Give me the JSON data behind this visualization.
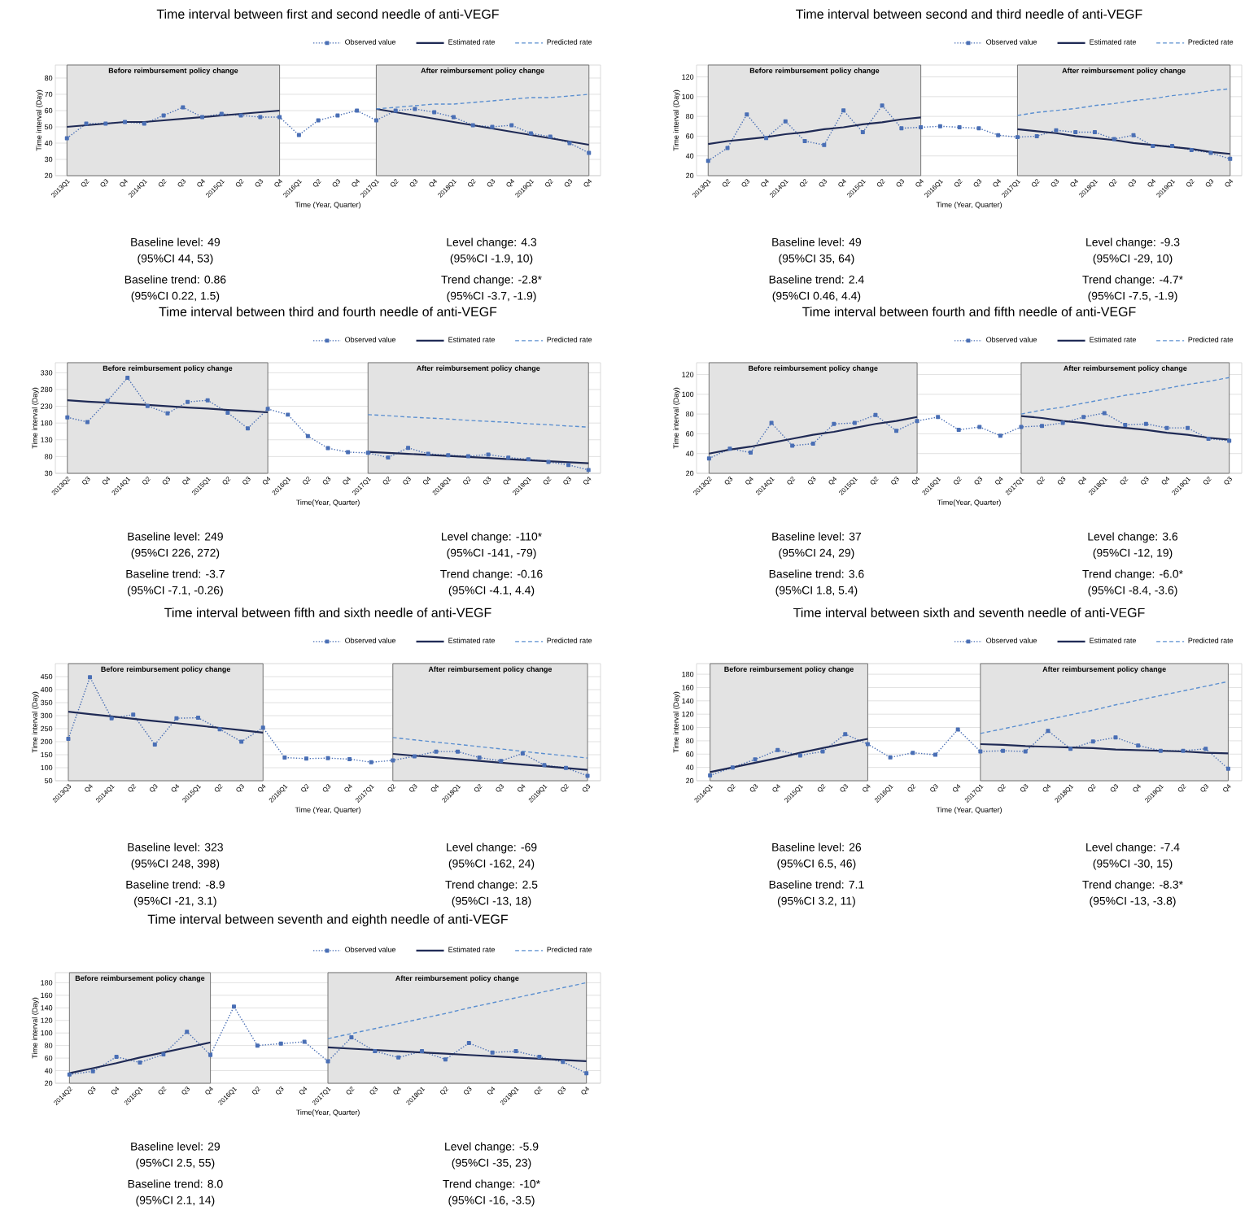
{
  "chart_data": [
    {
      "type": "line",
      "title": "Time interval between first and second needle of anti-VEGF",
      "xlabel": "Time (Year, Quarter)",
      "ylabel": "Time interval (Day)",
      "grid": "y",
      "legend": "top right",
      "ylim": [
        20,
        88
      ],
      "yticks": [
        20,
        30,
        40,
        50,
        60,
        70,
        80
      ],
      "categories": [
        "2013Q1",
        "Q2",
        "Q3",
        "Q4",
        "2014Q1",
        "Q2",
        "Q3",
        "Q4",
        "2015Q1",
        "Q2",
        "Q3",
        "Q4",
        "2016Q1",
        "Q2",
        "Q3",
        "Q4",
        "2017Q1",
        "Q2",
        "Q3",
        "Q4",
        "2018Q1",
        "Q2",
        "Q3",
        "Q4",
        "2019Q1",
        "Q2",
        "Q3",
        "Q4"
      ],
      "series": [
        {
          "name": "Observed value",
          "color": "#4a6fb5",
          "line_style": "dotted",
          "marker": "square",
          "values": [
            43,
            52,
            52,
            53,
            52,
            57,
            62,
            56,
            58,
            57,
            56,
            56,
            45,
            54,
            57,
            60,
            54,
            60,
            61,
            59,
            56,
            51,
            50,
            51,
            46,
            44,
            40,
            34
          ]
        },
        {
          "name": "Estimated rate",
          "color": "#1f2a55",
          "line_style": "solid",
          "marker": "none",
          "values": [
            50,
            51,
            52,
            53,
            53,
            54,
            55,
            56,
            57,
            58,
            59,
            60,
            null,
            null,
            null,
            null,
            null,
            null,
            null,
            null,
            null,
            null,
            null,
            null,
            null,
            null,
            null,
            null
          ]
        },
        {
          "color": "#1f2a55",
          "line_style": "solid",
          "marker": "none",
          "values": [
            null,
            null,
            null,
            null,
            null,
            null,
            null,
            null,
            null,
            null,
            null,
            null,
            null,
            null,
            null,
            null,
            61,
            59,
            57,
            55,
            53,
            51,
            49,
            47,
            45,
            43,
            41,
            39
          ]
        },
        {
          "name": "Predicted rate",
          "color": "#5b8fd0",
          "line_style": "dashed",
          "marker": "none",
          "values": [
            null,
            null,
            null,
            null,
            null,
            null,
            null,
            null,
            null,
            null,
            null,
            null,
            null,
            null,
            null,
            null,
            61,
            62,
            63,
            64,
            64,
            65,
            66,
            67,
            68,
            68,
            69,
            70
          ]
        }
      ],
      "annotations": [
        "Baseline level: 49",
        "(95%CI 44, 53)",
        "Baseline trend: 0.86",
        "(95%CI 0.22, 1.5)",
        "Level change: 4.3",
        "(95%CI -1.9, 10)",
        "Trend change: -2.8*",
        "(95%CI -3.7, -1.9)",
        "Before reimbursement policy change",
        "After reimbursement policy change"
      ]
    },
    {
      "type": "line",
      "title": "Time interval between second and third needle of anti-VEGF",
      "xlabel": "Time (Year, Quarter)",
      "ylabel": "Time interval (Day)",
      "grid": "y",
      "legend": "top right",
      "ylim": [
        20,
        132
      ],
      "yticks": [
        20,
        40,
        60,
        80,
        100,
        120
      ],
      "categories": [
        "2013Q1",
        "Q2",
        "Q3",
        "Q4",
        "2014Q1",
        "Q2",
        "Q3",
        "Q4",
        "2015Q1",
        "Q2",
        "Q3",
        "Q4",
        "2016Q1",
        "Q2",
        "Q3",
        "Q4",
        "2017Q1",
        "Q2",
        "Q3",
        "Q4",
        "2018Q1",
        "Q2",
        "Q3",
        "Q4",
        "2019Q1",
        "Q2",
        "Q3",
        "Q4"
      ],
      "series": [
        {
          "name": "Observed value",
          "color": "#4a6fb5",
          "line_style": "dotted",
          "marker": "square",
          "values": [
            35,
            48,
            82,
            58,
            75,
            55,
            51,
            86,
            64,
            91,
            68,
            69,
            70,
            69,
            68,
            61,
            59,
            60,
            66,
            64,
            64,
            57,
            61,
            50,
            50,
            46,
            43,
            37
          ]
        },
        {
          "name": "Estimated rate",
          "color": "#1f2a55",
          "line_style": "solid",
          "marker": "none",
          "values": [
            52,
            55,
            57,
            59,
            62,
            64,
            67,
            69,
            72,
            74,
            77,
            79,
            null,
            null,
            null,
            null,
            null,
            null,
            null,
            null,
            null,
            null,
            null,
            null,
            null,
            null,
            null,
            null
          ]
        },
        {
          "color": "#1f2a55",
          "line_style": "solid",
          "marker": "none",
          "values": [
            null,
            null,
            null,
            null,
            null,
            null,
            null,
            null,
            null,
            null,
            null,
            null,
            null,
            null,
            null,
            null,
            67,
            65,
            63,
            60,
            58,
            56,
            53,
            51,
            49,
            47,
            44,
            42
          ]
        },
        {
          "name": "Predicted rate",
          "color": "#5b8fd0",
          "line_style": "dashed",
          "marker": "none",
          "values": [
            null,
            null,
            null,
            null,
            null,
            null,
            null,
            null,
            null,
            null,
            null,
            null,
            null,
            null,
            null,
            null,
            81,
            84,
            86,
            88,
            91,
            93,
            96,
            98,
            101,
            103,
            106,
            108
          ]
        }
      ],
      "annotations": [
        "Baseline level: 49",
        "(95%CI 35, 64)",
        "Baseline trend: 2.4",
        "(95%CI 0.46, 4.4)",
        "Level change: -9.3",
        "(95%CI -29, 10)",
        "Trend change: -4.7*",
        "(95%CI -7.5, -1.9)",
        "Before reimbursement policy change",
        "After reimbursement policy change"
      ]
    },
    {
      "type": "line",
      "title": "Time interval between third and fourth needle of anti-VEGF",
      "xlabel": "Time(Year, Quarter)",
      "ylabel": "Time interval (Day)",
      "grid": "y",
      "legend": "top right",
      "ylim": [
        30,
        360
      ],
      "yticks": [
        30,
        80,
        130,
        180,
        230,
        280,
        330
      ],
      "categories": [
        "2013Q2",
        "Q3",
        "Q4",
        "2014Q1",
        "Q2",
        "Q3",
        "Q4",
        "2015Q1",
        "Q2",
        "Q3",
        "Q4",
        "2016Q1",
        "Q2",
        "Q3",
        "Q4",
        "2017Q1",
        "Q2",
        "Q3",
        "Q4",
        "2018Q1",
        "Q2",
        "Q3",
        "Q4",
        "2019Q1",
        "Q2",
        "Q3",
        "Q4"
      ],
      "series": [
        {
          "name": "Observed value",
          "color": "#4a6fb5",
          "line_style": "dotted",
          "marker": "square",
          "values": [
            197,
            183,
            246,
            315,
            231,
            209,
            243,
            248,
            211,
            164,
            222,
            205,
            141,
            105,
            93,
            91,
            77,
            106,
            88,
            84,
            81,
            86,
            77,
            72,
            64,
            55,
            40
          ]
        },
        {
          "name": "Estimated rate",
          "color": "#1f2a55",
          "line_style": "solid",
          "marker": "none",
          "values": [
            248,
            244,
            241,
            237,
            234,
            230,
            226,
            223,
            219,
            216,
            212,
            null,
            null,
            null,
            null,
            null,
            null,
            null,
            null,
            null,
            null,
            null,
            null,
            null,
            null,
            null,
            null
          ]
        },
        {
          "color": "#1f2a55",
          "line_style": "solid",
          "marker": "none",
          "values": [
            null,
            null,
            null,
            null,
            null,
            null,
            null,
            null,
            null,
            null,
            null,
            null,
            null,
            null,
            null,
            94,
            91,
            88,
            85,
            82,
            79,
            76,
            72,
            69,
            66,
            63,
            60
          ]
        },
        {
          "name": "Predicted rate",
          "color": "#5b8fd0",
          "line_style": "dashed",
          "marker": "none",
          "values": [
            null,
            null,
            null,
            null,
            null,
            null,
            null,
            null,
            null,
            null,
            null,
            null,
            null,
            null,
            null,
            205,
            202,
            198,
            195,
            192,
            188,
            185,
            182,
            178,
            175,
            171,
            168
          ]
        }
      ],
      "annotations": [
        "Baseline level: 249",
        "(95%CI 226, 272)",
        "Baseline trend: -3.7",
        "(95%CI -7.1, -0.26)",
        "Level change: -110*",
        "(95%CI -141, -79)",
        "Trend change: -0.16",
        "(95%CI -4.1, 4.4)",
        "Before reimbursement policy change",
        "After reimbursement policy change"
      ]
    },
    {
      "type": "line",
      "title": "Time interval between fourth and fifth needle of anti-VEGF",
      "xlabel": "Time(Year, Quarter)",
      "ylabel": "Time interval (Day)",
      "grid": "y",
      "legend": "top right",
      "ylim": [
        20,
        132
      ],
      "yticks": [
        20,
        40,
        60,
        80,
        100,
        120
      ],
      "categories": [
        "2013Q2",
        "Q3",
        "Q4",
        "2014Q1",
        "Q2",
        "Q3",
        "Q4",
        "2015Q1",
        "Q2",
        "Q3",
        "Q4",
        "2016Q1",
        "Q2",
        "Q3",
        "Q4",
        "2017Q1",
        "Q2",
        "Q3",
        "Q4",
        "2018Q1",
        "Q2",
        "Q3",
        "Q4",
        "2019Q1",
        "Q2",
        "Q3"
      ],
      "series": [
        {
          "name": "Observed value",
          "color": "#4a6fb5",
          "line_style": "dotted",
          "marker": "square",
          "values": [
            35,
            45,
            41,
            71,
            48,
            50,
            70,
            71,
            79,
            63,
            73,
            77,
            64,
            67,
            58,
            67,
            68,
            71,
            77,
            81,
            69,
            70,
            66,
            66,
            55,
            53
          ]
        },
        {
          "name": "Estimated rate",
          "color": "#1f2a55",
          "line_style": "solid",
          "marker": "none",
          "values": [
            40,
            44,
            47,
            51,
            55,
            59,
            62,
            66,
            70,
            73,
            77,
            null,
            null,
            null,
            null,
            null,
            null,
            null,
            null,
            null,
            null,
            null,
            null,
            null,
            null,
            null
          ]
        },
        {
          "color": "#1f2a55",
          "line_style": "solid",
          "marker": "none",
          "values": [
            null,
            null,
            null,
            null,
            null,
            null,
            null,
            null,
            null,
            null,
            null,
            null,
            null,
            null,
            null,
            78,
            76,
            73,
            71,
            68,
            66,
            64,
            61,
            59,
            56,
            54
          ]
        },
        {
          "name": "Predicted rate",
          "color": "#5b8fd0",
          "line_style": "dashed",
          "marker": "none",
          "values": [
            null,
            null,
            null,
            null,
            null,
            null,
            null,
            null,
            null,
            null,
            null,
            null,
            null,
            null,
            null,
            80,
            84,
            87,
            91,
            95,
            99,
            102,
            106,
            110,
            113,
            117
          ]
        }
      ],
      "annotations": [
        "Baseline level: 37",
        "(95%CI 24, 29)",
        "Baseline trend: 3.6",
        "(95%CI 1.8, 5.4)",
        "Level change: 3.6",
        "(95%CI -12, 19)",
        "Trend change: -6.0*",
        "(95%CI -8.4, -3.6)",
        "Before reimbursement policy change",
        "After reimbursement policy change"
      ]
    },
    {
      "type": "line",
      "title": "Time interval between fifth and sixth needle of anti-VEGF",
      "xlabel": "Time (Year, Quarter)",
      "ylabel": "Time interval (Day)",
      "grid": "y",
      "legend": "top right",
      "ylim": [
        50,
        500
      ],
      "yticks": [
        50,
        100,
        150,
        200,
        250,
        300,
        350,
        400,
        450
      ],
      "categories": [
        "2013Q3",
        "Q4",
        "2014Q1",
        "Q2",
        "Q3",
        "Q4",
        "2015Q1",
        "Q2",
        "Q3",
        "Q4",
        "2016Q1",
        "Q2",
        "Q3",
        "Q4",
        "2017Q1",
        "Q2",
        "Q3",
        "Q4",
        "2018Q1",
        "Q2",
        "Q3",
        "Q4",
        "2019Q1",
        "Q2",
        "Q3"
      ],
      "series": [
        {
          "name": "Observed value",
          "color": "#4a6fb5",
          "line_style": "dotted",
          "marker": "square",
          "values": [
            211,
            448,
            290,
            304,
            189,
            290,
            292,
            248,
            200,
            254,
            139,
            135,
            137,
            133,
            121,
            128,
            144,
            162,
            162,
            139,
            126,
            155,
            110,
            99,
            69
          ]
        },
        {
          "name": "Estimated rate",
          "color": "#1f2a55",
          "line_style": "solid",
          "marker": "none",
          "values": [
            315,
            306,
            297,
            288,
            279,
            271,
            262,
            253,
            244,
            235,
            null,
            null,
            null,
            null,
            null,
            null,
            null,
            null,
            null,
            null,
            null,
            null,
            null,
            null,
            null
          ]
        },
        {
          "color": "#1f2a55",
          "line_style": "solid",
          "marker": "none",
          "values": [
            null,
            null,
            null,
            null,
            null,
            null,
            null,
            null,
            null,
            null,
            null,
            null,
            null,
            null,
            null,
            153,
            146,
            140,
            133,
            126,
            119,
            112,
            106,
            99,
            92
          ]
        },
        {
          "name": "Predicted rate",
          "color": "#5b8fd0",
          "line_style": "dashed",
          "marker": "none",
          "values": [
            null,
            null,
            null,
            null,
            null,
            null,
            null,
            null,
            null,
            null,
            null,
            null,
            null,
            null,
            null,
            216,
            207,
            198,
            190,
            181,
            172,
            163,
            154,
            146,
            137
          ]
        }
      ],
      "annotations": [
        "Baseline level: 323",
        "(95%CI 248, 398)",
        "Baseline trend: -8.9",
        "(95%CI -21, 3.1)",
        "Level change: -69",
        "(95%CI -162, 24)",
        "Trend change: 2.5",
        "(95%CI -13, 18)",
        "Before reimbursement policy change",
        "After reimbursement policy change"
      ]
    },
    {
      "type": "line",
      "title": "Time interval between sixth and seventh needle of anti-VEGF",
      "xlabel": "Time (Year, Quarter)",
      "ylabel": "Time interval (Day)",
      "grid": "y",
      "legend": "top right",
      "ylim": [
        20,
        196
      ],
      "yticks": [
        20,
        40,
        60,
        80,
        100,
        120,
        140,
        160,
        180
      ],
      "categories": [
        "2014Q1",
        "Q2",
        "Q3",
        "Q4",
        "2015Q1",
        "Q2",
        "Q3",
        "Q4",
        "2016Q1",
        "Q2",
        "Q3",
        "Q4",
        "2017Q1",
        "Q2",
        "Q3",
        "Q4",
        "2018Q1",
        "Q2",
        "Q3",
        "Q4",
        "2019Q1",
        "Q2",
        "Q3",
        "Q4"
      ],
      "series": [
        {
          "name": "Observed value",
          "color": "#4a6fb5",
          "line_style": "dotted",
          "marker": "square",
          "values": [
            28,
            40,
            52,
            66,
            58,
            64,
            90,
            75,
            55,
            62,
            59,
            97,
            64,
            65,
            64,
            95,
            68,
            79,
            85,
            73,
            65,
            65,
            68,
            38
          ]
        },
        {
          "name": "Estimated rate",
          "color": "#1f2a55",
          "line_style": "solid",
          "marker": "none",
          "values": [
            33,
            40,
            47,
            54,
            62,
            69,
            76,
            83,
            null,
            null,
            null,
            null,
            null,
            null,
            null,
            null,
            null,
            null,
            null,
            null,
            null,
            null,
            null,
            null
          ]
        },
        {
          "color": "#1f2a55",
          "line_style": "solid",
          "marker": "none",
          "values": [
            null,
            null,
            null,
            null,
            null,
            null,
            null,
            null,
            null,
            null,
            null,
            null,
            75,
            74,
            72,
            71,
            70,
            69,
            67,
            66,
            65,
            64,
            62,
            61
          ]
        },
        {
          "name": "Predicted rate",
          "color": "#5b8fd0",
          "line_style": "dashed",
          "marker": "none",
          "values": [
            null,
            null,
            null,
            null,
            null,
            null,
            null,
            null,
            null,
            null,
            null,
            null,
            91,
            98,
            105,
            112,
            119,
            126,
            134,
            141,
            148,
            155,
            162,
            169
          ]
        }
      ],
      "annotations": [
        "Baseline level: 26",
        "(95%CI 6.5, 46)",
        "Baseline trend: 7.1",
        "(95%CI 3.2, 11)",
        "Level change: -7.4",
        "(95%CI -30, 15)",
        "Trend change: -8.3*",
        "(95%CI -13, -3.8)",
        "Before reimbursement policy change",
        "After reimbursement policy change"
      ]
    },
    {
      "type": "line",
      "title": "Time interval between seventh and eighth needle of anti-VEGF",
      "xlabel": "Time(Year, Quarter)",
      "ylabel": "Time interval (Day)",
      "grid": "y",
      "legend": "top right",
      "ylim": [
        20,
        196
      ],
      "yticks": [
        20,
        40,
        60,
        80,
        100,
        120,
        140,
        160,
        180
      ],
      "categories": [
        "2014Q2",
        "Q3",
        "Q4",
        "2015Q1",
        "Q2",
        "Q3",
        "Q4",
        "2016Q1",
        "Q2",
        "Q3",
        "Q4",
        "2017Q1",
        "Q2",
        "Q3",
        "Q4",
        "2018Q1",
        "Q2",
        "Q3",
        "Q4",
        "2019Q1",
        "Q2",
        "Q3",
        "Q4"
      ],
      "series": [
        {
          "name": "Observed value",
          "color": "#4a6fb5",
          "line_style": "dotted",
          "marker": "square",
          "values": [
            34,
            39,
            62,
            53,
            66,
            102,
            65,
            142,
            80,
            83,
            86,
            55,
            93,
            71,
            61,
            71,
            58,
            84,
            69,
            71,
            62,
            54,
            36
          ]
        },
        {
          "name": "Estimated rate",
          "color": "#1f2a55",
          "line_style": "solid",
          "marker": "none",
          "values": [
            36,
            44,
            52,
            61,
            69,
            77,
            85,
            null,
            null,
            null,
            null,
            null,
            null,
            null,
            null,
            null,
            null,
            null,
            null,
            null,
            null,
            null,
            null
          ]
        },
        {
          "color": "#1f2a55",
          "line_style": "solid",
          "marker": "none",
          "values": [
            null,
            null,
            null,
            null,
            null,
            null,
            null,
            null,
            null,
            null,
            null,
            77,
            75,
            73,
            71,
            69,
            67,
            65,
            63,
            61,
            59,
            57,
            55
          ]
        },
        {
          "name": "Predicted rate",
          "color": "#5b8fd0",
          "line_style": "dashed",
          "marker": "none",
          "values": [
            null,
            null,
            null,
            null,
            null,
            null,
            null,
            null,
            null,
            null,
            null,
            91,
            99,
            107,
            115,
            123,
            131,
            140,
            148,
            156,
            164,
            172,
            180
          ]
        }
      ],
      "annotations": [
        "Baseline level: 29",
        "(95%CI 2.5, 55)",
        "Baseline trend: 8.0",
        "(95%CI 2.1, 14)",
        "Level change: -5.9",
        "(95%CI -35, 23)",
        "Trend change: -10*",
        "(95%CI -16, -3.5)",
        "Before reimbursement policy change",
        "After reimbursement policy change"
      ]
    }
  ]
}
